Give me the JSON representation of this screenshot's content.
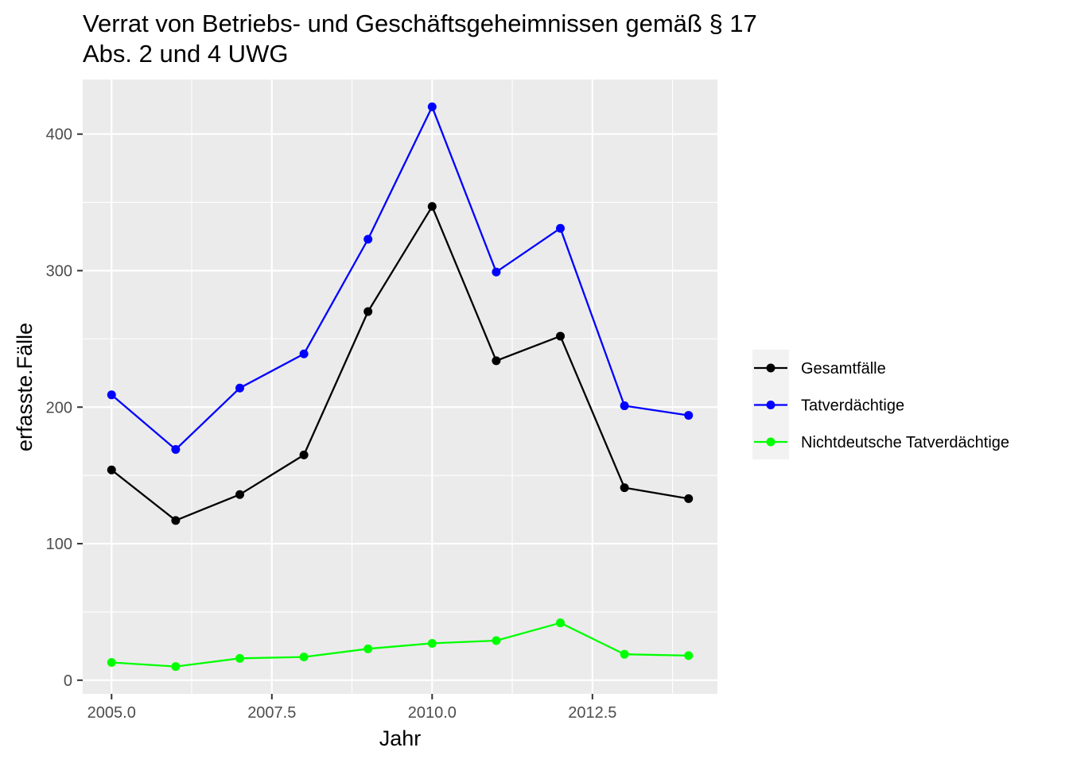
{
  "chart_data": {
    "type": "line",
    "title_line1": "Verrat von Betriebs- und Geschäftsgeheimnissen gemäß § 17",
    "title_line2": "Abs. 2 und 4 UWG",
    "xlabel": "Jahr",
    "ylabel": "erfasste.Fälle",
    "xlim": [
      2004.55,
      2014.45
    ],
    "ylim": [
      -10,
      440
    ],
    "x_ticks": [
      2005.0,
      2007.5,
      2010.0,
      2012.5
    ],
    "x_tick_labels": [
      "2005.0",
      "2007.5",
      "2010.0",
      "2012.5"
    ],
    "y_ticks": [
      0,
      100,
      200,
      300,
      400
    ],
    "y_tick_labels": [
      "0",
      "100",
      "200",
      "300",
      "400"
    ],
    "grid": true,
    "legend_position": "right",
    "x": [
      2005,
      2006,
      2007,
      2008,
      2009,
      2010,
      2011,
      2012,
      2013,
      2014
    ],
    "series": [
      {
        "name": "Gesamtfälle",
        "color": "#000000",
        "values": [
          154,
          117,
          136,
          165,
          270,
          347,
          234,
          252,
          141,
          133
        ]
      },
      {
        "name": "Tatverdächtige",
        "color": "#0000ff",
        "values": [
          209,
          169,
          214,
          239,
          323,
          420,
          299,
          331,
          201,
          194
        ]
      },
      {
        "name": "Nichtdeutsche Tatverdächtige",
        "color": "#00ff00",
        "values": [
          13,
          10,
          16,
          17,
          23,
          27,
          29,
          42,
          19,
          18
        ]
      }
    ]
  }
}
